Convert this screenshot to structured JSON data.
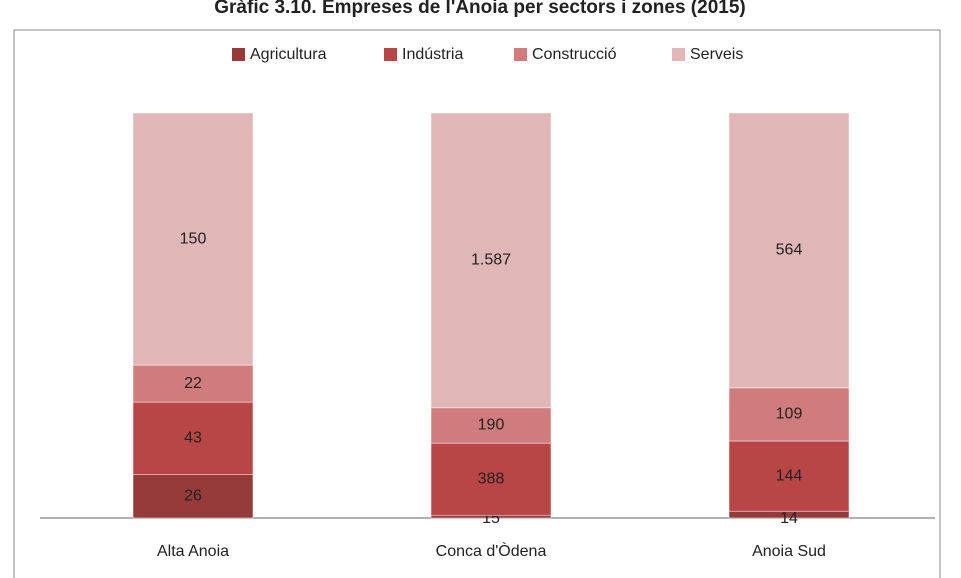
{
  "chart_data": {
    "type": "stacked_bar_100",
    "title": "Gràfic 3.10. Empreses de l'Anoia per sectors i zones (2015)",
    "categories": [
      "Alta Anoia",
      "Conca d'Òdena",
      "Anoia Sud"
    ],
    "series": [
      {
        "name": "Agricultura",
        "color": "#963a3a",
        "values": [
          26,
          15,
          14
        ]
      },
      {
        "name": "Indústria",
        "color": "#b94646",
        "values": [
          43,
          388,
          144
        ]
      },
      {
        "name": "Construcció",
        "color": "#d07c7c",
        "values": [
          22,
          190,
          109
        ]
      },
      {
        "name": "Serveis",
        "color": "#e0b6b6",
        "values": [
          150,
          1587,
          564
        ],
        "value_labels": [
          "150",
          "1.587",
          "564"
        ]
      }
    ],
    "legend": "top"
  }
}
